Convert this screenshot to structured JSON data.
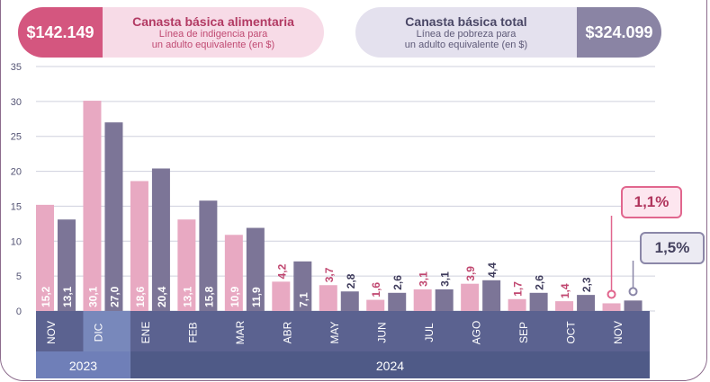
{
  "header": {
    "left": {
      "amount": "$142.149",
      "title": "Canasta básica alimentaria",
      "subtitle_line1": "Línea de indigencia para",
      "subtitle_line2": "un adulto equivalente (en $)"
    },
    "right": {
      "amount": "$324.099",
      "title": "Canasta básica total",
      "subtitle_line1": "Línea de pobreza para",
      "subtitle_line2": "un adulto equivalente (en $)"
    }
  },
  "callouts": {
    "series_a_last": "1,1%",
    "series_b_last": "1,5%"
  },
  "colors": {
    "series_a": "#e8a9c2",
    "series_b": "#7c7597",
    "axis_band": "#5b6290",
    "year_2023_band": "#6f7fb8",
    "year_2024_band": "#4f5a87",
    "highlight_band": "#7888bb"
  },
  "chart_data": {
    "type": "bar",
    "categories": [
      "NOV",
      "DIC",
      "ENE",
      "FEB",
      "MAR",
      "ABR",
      "MAY",
      "JUN",
      "JUL",
      "AGO",
      "SEP",
      "OCT",
      "NOV"
    ],
    "series": [
      {
        "values": [
          15.2,
          30.1,
          18.6,
          13.1,
          10.9,
          4.2,
          3.7,
          1.6,
          3.1,
          3.9,
          1.7,
          1.4,
          1.1
        ],
        "labels": [
          "15,2",
          "30,1",
          "18,6",
          "13,1",
          "10,9",
          "4,2",
          "3,7",
          "1,6",
          "3,1",
          "3,9",
          "1,7",
          "1,4",
          ""
        ]
      },
      {
        "values": [
          13.1,
          27.0,
          20.4,
          15.8,
          11.9,
          7.1,
          2.8,
          2.6,
          3.1,
          4.4,
          2.6,
          2.3,
          1.5
        ],
        "labels": [
          "13,1",
          "27,0",
          "20,4",
          "15,8",
          "11,9",
          "7,1",
          "2,8",
          "2,6",
          "3,1",
          "4,4",
          "2,6",
          "2,3",
          ""
        ]
      }
    ],
    "y_ticks": [
      "35",
      "30",
      "25",
      "20",
      "15",
      "10",
      "5",
      "0"
    ],
    "ylim": [
      0,
      35
    ],
    "years": [
      {
        "label": "2023",
        "span": [
          0,
          1
        ]
      },
      {
        "label": "2024",
        "span": [
          2,
          12
        ]
      }
    ],
    "highlight_category": 1,
    "grid": true
  }
}
